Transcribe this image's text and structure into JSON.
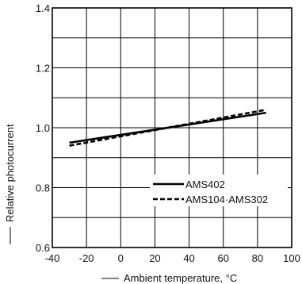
{
  "chart_data": {
    "type": "line",
    "xlabel": "Ambient temperature, °C",
    "ylabel": "Relative photocurrent",
    "xlim": [
      -40,
      100
    ],
    "ylim": [
      0.6,
      1.4
    ],
    "xticks": [
      -40,
      -20,
      0,
      20,
      40,
      60,
      80,
      100
    ],
    "xtick_labels": [
      "-40",
      "-20",
      "0",
      "20",
      "40",
      "60",
      "80",
      "100"
    ],
    "yticks": [
      0.6,
      0.8,
      1.0,
      1.2,
      1.4
    ],
    "ytick_labels": [
      "0.6",
      "0.8",
      "1.0",
      "1.2",
      "1.4"
    ],
    "grid": true,
    "legend_position": "bottom-right",
    "series": [
      {
        "name": "AMS402",
        "style": "solid",
        "x": [
          -30,
          85
        ],
        "y": [
          0.95,
          1.05
        ]
      },
      {
        "name": "AMS104·AMS302",
        "style": "dashed",
        "x": [
          -30,
          85
        ],
        "y": [
          0.94,
          1.06
        ]
      }
    ]
  }
}
